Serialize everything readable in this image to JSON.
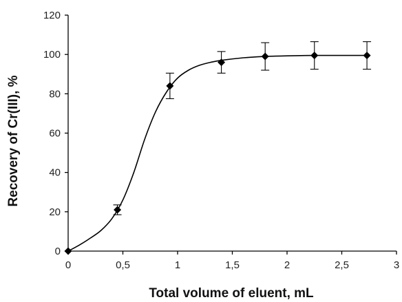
{
  "chart_data": {
    "type": "scatter",
    "title": "",
    "xlabel": "Total volume of eluent, mL",
    "ylabel": "Recovery of Cr(III),  %",
    "xlim": [
      0,
      3
    ],
    "ylim": [
      0,
      120
    ],
    "x_ticks": [
      0,
      0.5,
      1,
      1.5,
      2,
      2.5,
      3
    ],
    "x_tick_labels": [
      "0",
      "0,5",
      "1",
      "1,5",
      "2",
      "2,5",
      "3"
    ],
    "y_ticks": [
      0,
      20,
      40,
      60,
      80,
      100,
      120
    ],
    "y_tick_labels": [
      "0",
      "20",
      "40",
      "60",
      "80",
      "100",
      "120"
    ],
    "grid": false,
    "series": [
      {
        "marker": "diamond",
        "fit_line": "smooth sigmoid",
        "x": [
          0,
          0.45,
          0.93,
          1.4,
          1.8,
          2.25,
          2.73
        ],
        "y": [
          0,
          21,
          84,
          96,
          99,
          99.5,
          99.5
        ],
        "error": [
          0,
          2.5,
          6.5,
          5.5,
          7,
          7,
          7
        ]
      }
    ],
    "curve_points": [
      [
        0,
        0
      ],
      [
        0.1,
        3
      ],
      [
        0.2,
        6.5
      ],
      [
        0.3,
        10.5
      ],
      [
        0.4,
        16.5
      ],
      [
        0.5,
        26
      ],
      [
        0.6,
        40
      ],
      [
        0.7,
        57
      ],
      [
        0.8,
        71
      ],
      [
        0.9,
        81
      ],
      [
        1.0,
        88
      ],
      [
        1.1,
        92
      ],
      [
        1.2,
        94.5
      ],
      [
        1.3,
        96
      ],
      [
        1.4,
        97
      ],
      [
        1.6,
        98.3
      ],
      [
        1.8,
        99
      ],
      [
        2.0,
        99.3
      ],
      [
        2.25,
        99.5
      ],
      [
        2.5,
        99.5
      ],
      [
        2.73,
        99.5
      ]
    ],
    "colors": {
      "line": "#000000",
      "marker": "#000000",
      "background": "#ffffff"
    }
  }
}
